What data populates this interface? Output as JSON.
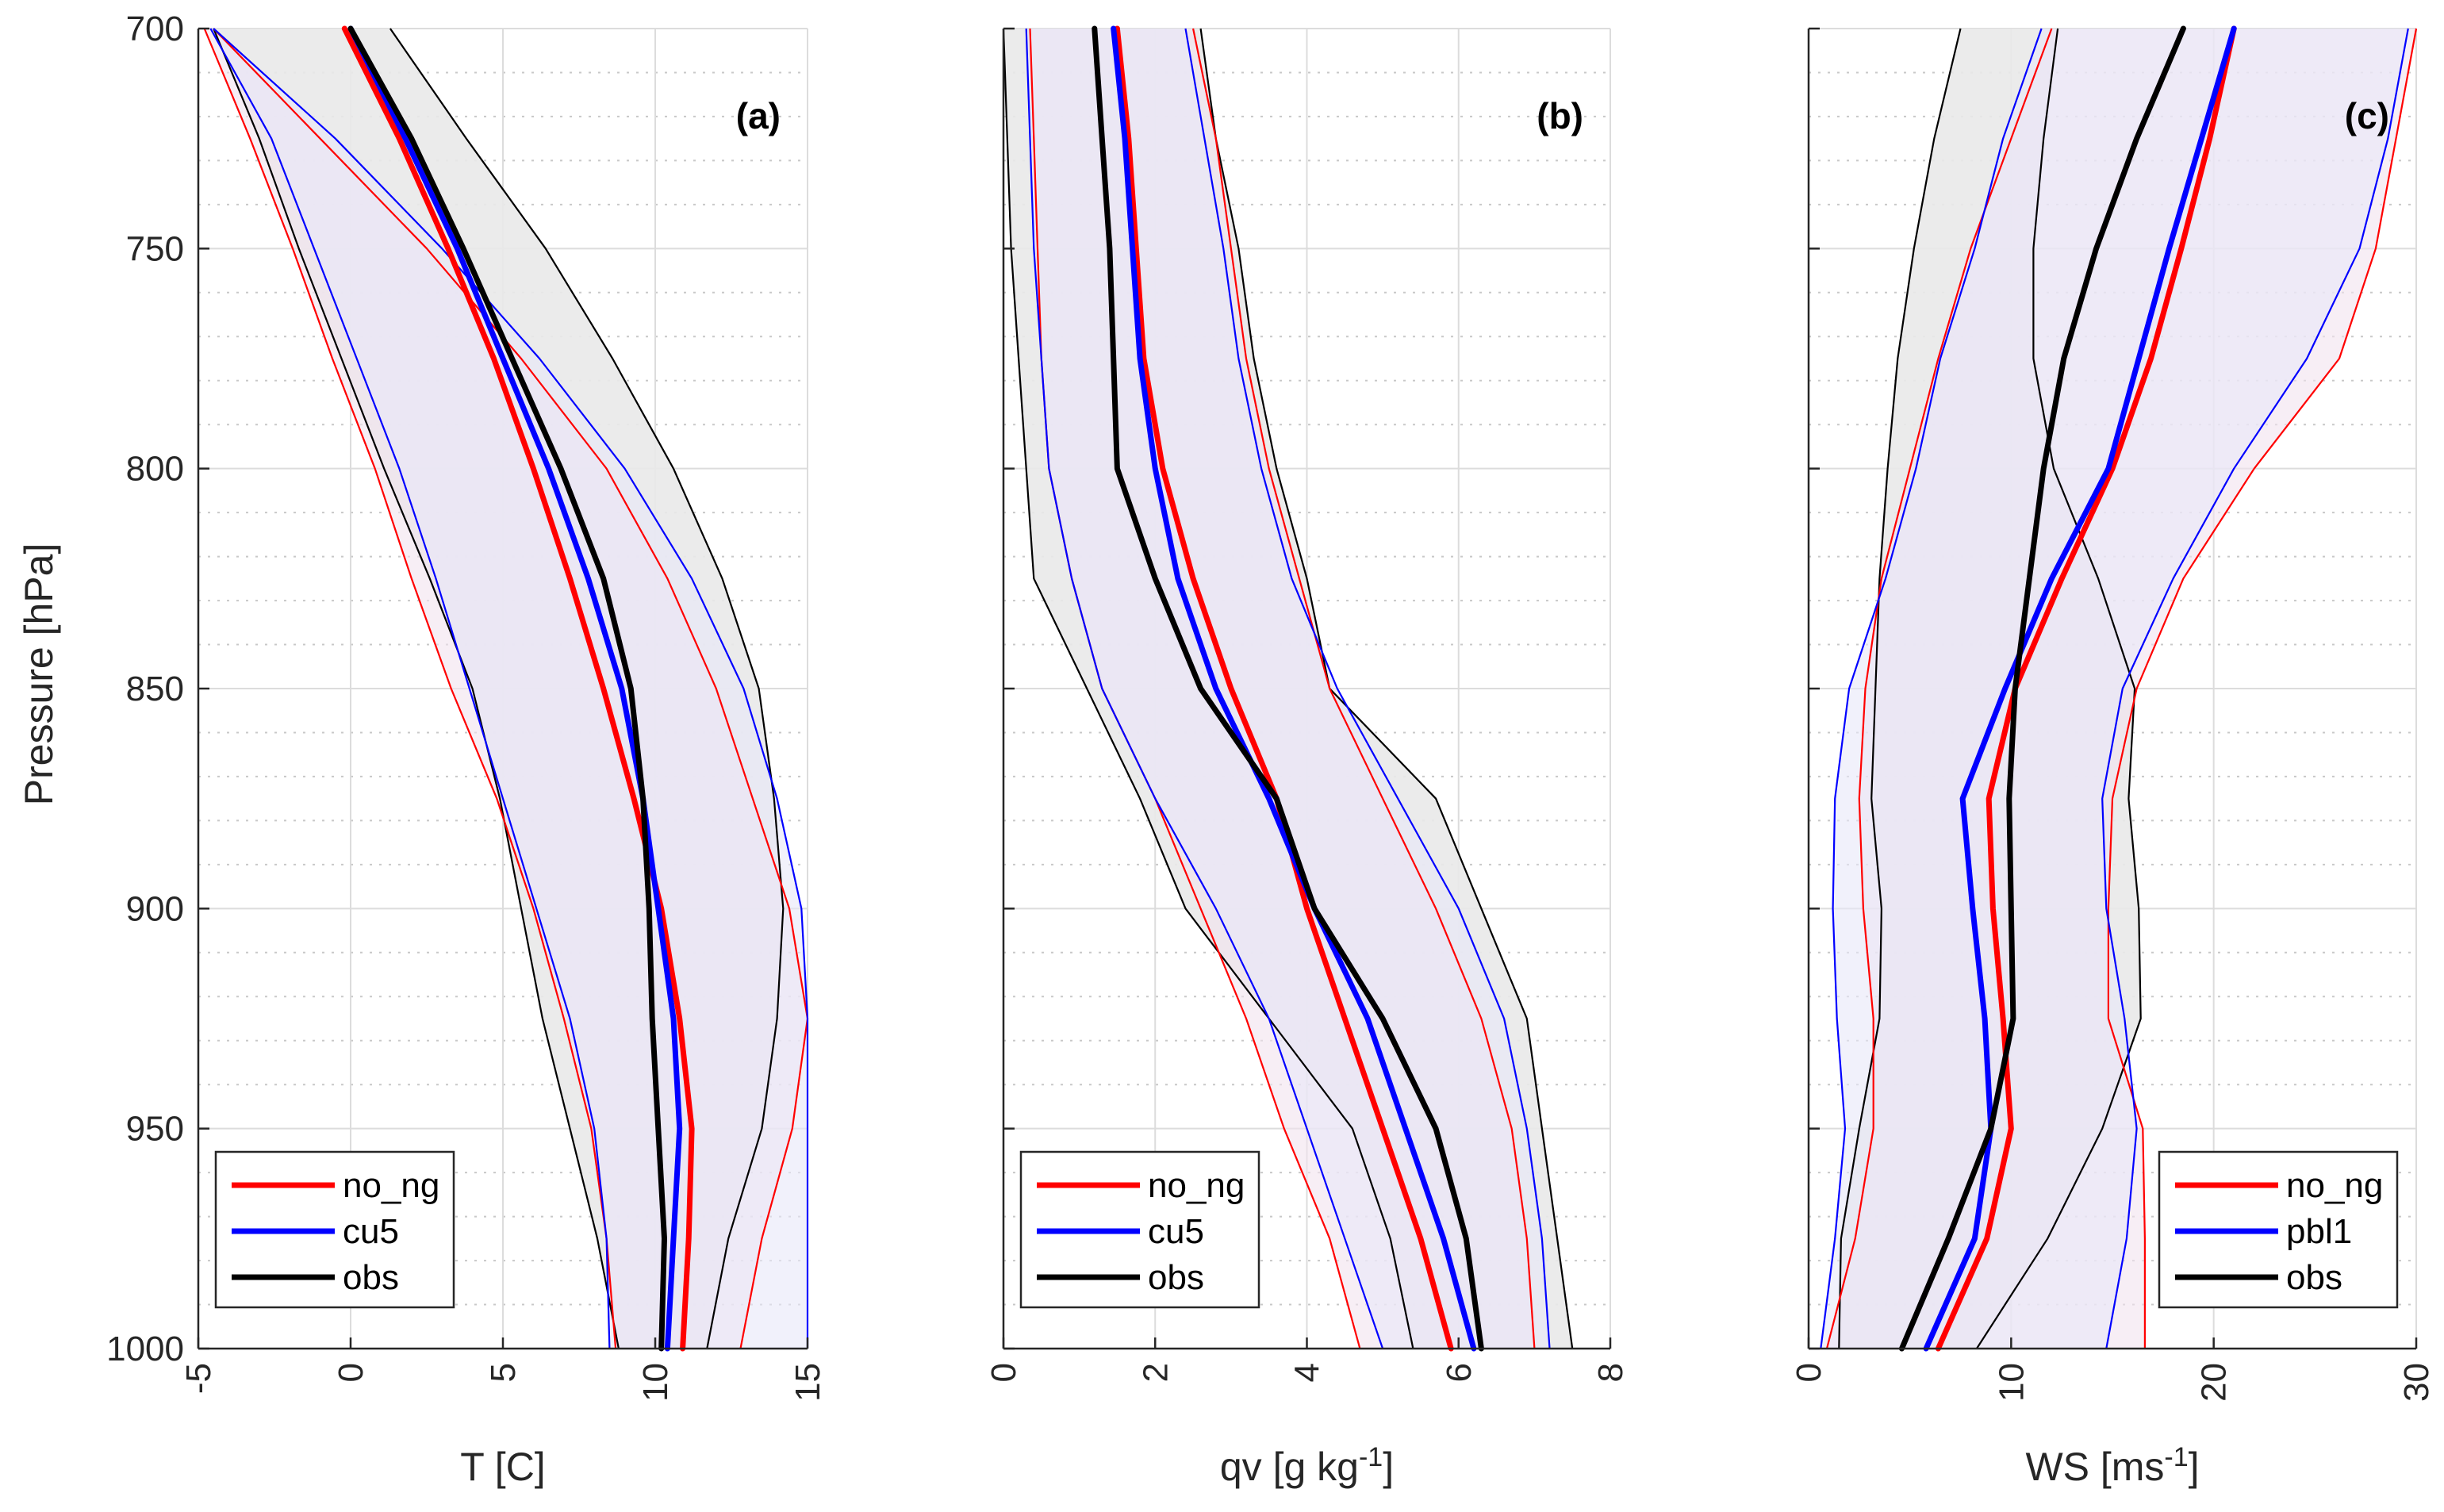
{
  "figure": {
    "ylabel": "Pressure [hPa]",
    "ylim": [
      700,
      1000
    ],
    "yticks": [
      700,
      750,
      800,
      850,
      900,
      950,
      1000
    ],
    "yminor_step": 10
  },
  "chart_data": [
    {
      "type": "line",
      "panel_label": "(a)",
      "xlabel": "T [C]",
      "xlabel_sup": "",
      "xlabel_tail": "",
      "xlim": [
        -5,
        15
      ],
      "xticks": [
        -5,
        0,
        5,
        10,
        15
      ],
      "xticklabels": [
        "-5",
        "0",
        "5",
        "10",
        "15"
      ],
      "legend_position": "bottom-left",
      "pressure": [
        700,
        725,
        750,
        775,
        800,
        825,
        850,
        875,
        900,
        925,
        950,
        975,
        1000
      ],
      "series": [
        {
          "name": "no_ng",
          "color": "#ff0000",
          "legend": true,
          "mean": [
            -0.2,
            1.6,
            3.2,
            4.7,
            6.0,
            7.2,
            8.3,
            9.3,
            10.2,
            10.8,
            11.2,
            11.1,
            10.9
          ],
          "lower": [
            -4.8,
            -3.3,
            -1.9,
            -0.6,
            0.8,
            2.0,
            3.3,
            4.8,
            6.0,
            7.0,
            7.9,
            8.4,
            8.7
          ],
          "upper": [
            -4.5,
            -1.0,
            2.5,
            5.6,
            8.4,
            10.4,
            12.0,
            13.2,
            14.4,
            15.0,
            14.5,
            13.5,
            12.8
          ]
        },
        {
          "name": "cu5",
          "color": "#0000ff",
          "legend": true,
          "mean": [
            0.0,
            1.8,
            3.5,
            5.0,
            6.5,
            7.8,
            8.9,
            9.6,
            10.1,
            10.6,
            10.8,
            10.6,
            10.4
          ],
          "lower": [
            -4.6,
            -2.6,
            -1.2,
            0.2,
            1.6,
            2.8,
            3.9,
            5.0,
            6.1,
            7.2,
            8.0,
            8.4,
            8.5
          ],
          "upper": [
            -4.5,
            -0.5,
            3.0,
            6.2,
            9.0,
            11.2,
            12.9,
            14.0,
            14.8,
            15.0,
            15.0,
            15.0,
            15.0
          ]
        },
        {
          "name": "obs",
          "color": "#000000",
          "legend": true,
          "mean": [
            0.0,
            2.0,
            3.7,
            5.3,
            6.9,
            8.3,
            9.2,
            9.6,
            9.8,
            9.9,
            10.1,
            10.3,
            10.2
          ],
          "lower": [
            -4.5,
            -3.0,
            -1.7,
            -0.3,
            1.1,
            2.6,
            4.0,
            4.9,
            5.6,
            6.3,
            7.2,
            8.1,
            8.8
          ],
          "upper": [
            1.3,
            3.8,
            6.4,
            8.6,
            10.6,
            12.2,
            13.4,
            13.9,
            14.2,
            14.0,
            13.5,
            12.4,
            11.7
          ]
        }
      ]
    },
    {
      "type": "line",
      "panel_label": "(b)",
      "xlabel": "qv [g kg",
      "xlabel_sup": "-1",
      "xlabel_tail": "]",
      "xlim": [
        0,
        8
      ],
      "xticks": [
        0,
        2,
        4,
        6,
        8
      ],
      "xticklabels": [
        "0",
        "2",
        "4",
        "6",
        "8"
      ],
      "legend_position": "bottom-left",
      "pressure": [
        700,
        725,
        750,
        775,
        800,
        825,
        850,
        875,
        900,
        925,
        950,
        975,
        1000
      ],
      "series": [
        {
          "name": "no_ng",
          "color": "#ff0000",
          "legend": true,
          "mean": [
            1.5,
            1.65,
            1.75,
            1.85,
            2.1,
            2.5,
            3.0,
            3.6,
            4.0,
            4.5,
            5.0,
            5.5,
            5.9
          ],
          "lower": [
            0.35,
            0.4,
            0.45,
            0.5,
            0.6,
            0.9,
            1.3,
            2.0,
            2.6,
            3.2,
            3.7,
            4.3,
            4.7
          ],
          "upper": [
            2.5,
            2.8,
            3.0,
            3.2,
            3.5,
            3.9,
            4.3,
            5.0,
            5.7,
            6.3,
            6.7,
            6.9,
            7.0
          ]
        },
        {
          "name": "cu5",
          "color": "#0000ff",
          "legend": true,
          "mean": [
            1.45,
            1.6,
            1.7,
            1.8,
            2.0,
            2.3,
            2.8,
            3.5,
            4.1,
            4.8,
            5.3,
            5.8,
            6.2
          ],
          "lower": [
            0.3,
            0.35,
            0.4,
            0.5,
            0.6,
            0.9,
            1.3,
            2.0,
            2.8,
            3.5,
            4.0,
            4.5,
            5.0
          ],
          "upper": [
            2.4,
            2.65,
            2.9,
            3.1,
            3.4,
            3.8,
            4.4,
            5.2,
            6.0,
            6.6,
            6.9,
            7.1,
            7.2
          ]
        },
        {
          "name": "obs",
          "color": "#000000",
          "legend": true,
          "mean": [
            1.2,
            1.3,
            1.4,
            1.45,
            1.5,
            2.0,
            2.6,
            3.6,
            4.1,
            5.0,
            5.7,
            6.1,
            6.3
          ],
          "lower": [
            0.0,
            0.05,
            0.1,
            0.2,
            0.3,
            0.4,
            1.1,
            1.8,
            2.4,
            3.5,
            4.6,
            5.1,
            5.4
          ],
          "upper": [
            2.6,
            2.8,
            3.1,
            3.3,
            3.6,
            4.0,
            4.3,
            5.7,
            6.3,
            6.9,
            7.1,
            7.3,
            7.5
          ]
        }
      ]
    },
    {
      "type": "line",
      "panel_label": "(c)",
      "xlabel": "WS [ms",
      "xlabel_sup": "-1",
      "xlabel_tail": "]",
      "xlim": [
        0,
        30
      ],
      "xticks": [
        0,
        10,
        20,
        30
      ],
      "xticklabels": [
        "0",
        "10",
        "20",
        "30"
      ],
      "legend_position": "bottom-right",
      "pressure": [
        700,
        725,
        750,
        775,
        800,
        825,
        850,
        875,
        900,
        925,
        950,
        975,
        1000
      ],
      "series": [
        {
          "name": "no_ng",
          "color": "#ff0000",
          "legend": true,
          "mean": [
            21.0,
            19.8,
            18.4,
            16.9,
            15.0,
            12.5,
            10.2,
            8.9,
            9.1,
            9.6,
            10.0,
            8.8,
            6.4
          ],
          "lower": [
            12.0,
            10.0,
            8.0,
            6.4,
            5.0,
            3.6,
            2.8,
            2.5,
            2.7,
            3.2,
            3.2,
            2.3,
            0.9
          ],
          "upper": [
            30.0,
            29.0,
            28.0,
            26.2,
            22.0,
            18.5,
            16.2,
            15.0,
            14.8,
            14.8,
            16.5,
            16.6,
            16.6
          ]
        },
        {
          "name": "pbl1",
          "color": "#0000ff",
          "legend": true,
          "mean": [
            21.0,
            19.4,
            17.8,
            16.3,
            14.8,
            12.0,
            9.7,
            7.6,
            8.1,
            8.7,
            9.0,
            8.2,
            5.8
          ],
          "lower": [
            11.5,
            9.6,
            8.2,
            6.5,
            5.3,
            3.8,
            2.0,
            1.3,
            1.2,
            1.4,
            1.8,
            1.3,
            0.6
          ],
          "upper": [
            29.6,
            28.6,
            27.2,
            24.6,
            21.0,
            18.0,
            15.5,
            14.5,
            14.7,
            15.6,
            16.2,
            15.7,
            14.7
          ]
        },
        {
          "name": "obs",
          "color": "#000000",
          "legend": true,
          "mean": [
            18.5,
            16.2,
            14.2,
            12.6,
            11.6,
            10.9,
            10.2,
            9.9,
            10.0,
            10.1,
            9.0,
            6.9,
            4.6
          ],
          "lower": [
            7.5,
            6.2,
            5.2,
            4.4,
            3.9,
            3.5,
            3.3,
            3.1,
            3.6,
            3.5,
            2.5,
            1.6,
            1.5
          ],
          "upper": [
            12.3,
            11.6,
            11.1,
            11.1,
            12.1,
            14.3,
            16.1,
            15.8,
            16.3,
            16.4,
            14.5,
            11.8,
            8.3
          ]
        }
      ]
    }
  ]
}
